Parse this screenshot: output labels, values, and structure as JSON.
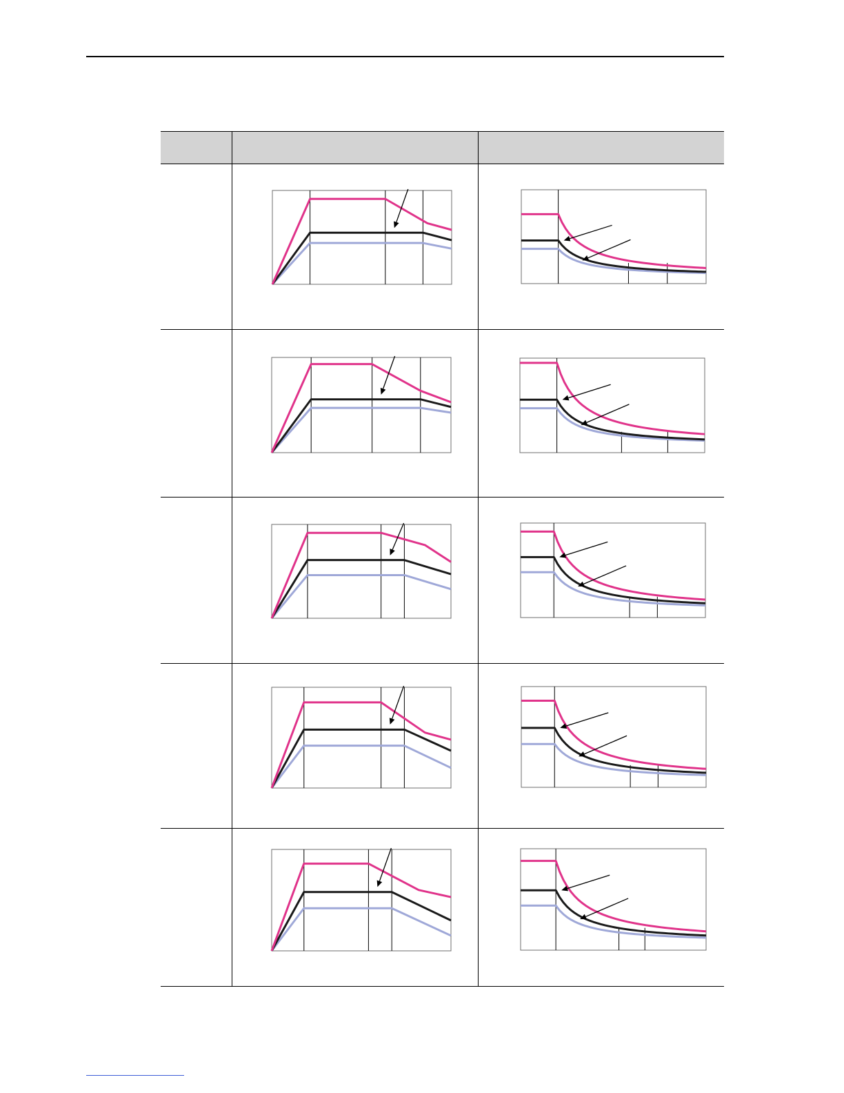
{
  "table": {
    "header": [
      "",
      "",
      ""
    ],
    "rows": [
      {
        "left_chart": {
          "break1": 0.21,
          "break2": 0.63,
          "break3": 0.84,
          "pink": [
            0.0,
            0.91,
            0.91,
            0.91,
            0.65,
            0.58
          ],
          "black": [
            0.0,
            0.55,
            0.55,
            0.55,
            0.55,
            0.47
          ],
          "blue": [
            0.0,
            0.44,
            0.44,
            0.44,
            0.44,
            0.38
          ]
        },
        "right_chart": {
          "break1": 0.2,
          "break2": 0.58,
          "break3": 0.79,
          "pink_start": 0.74,
          "black_start": 0.46,
          "blue_start": 0.37
        }
      },
      {
        "left_chart": {
          "break1": 0.22,
          "break2": 0.56,
          "break3": 0.83,
          "pink": [
            0.0,
            0.93,
            0.93,
            0.93,
            0.65,
            0.53
          ],
          "black": [
            0.0,
            0.56,
            0.56,
            0.56,
            0.56,
            0.48
          ],
          "blue": [
            0.0,
            0.47,
            0.47,
            0.47,
            0.47,
            0.42
          ]
        },
        "right_chart": {
          "break1": 0.2,
          "break2": 0.55,
          "break3": 0.8,
          "pink_start": 0.95,
          "black_start": 0.56,
          "blue_start": 0.47
        }
      },
      {
        "left_chart": {
          "break1": 0.2,
          "break2": 0.61,
          "break3": 0.74,
          "pink": [
            0.0,
            0.91,
            0.91,
            0.91,
            0.78,
            0.6
          ],
          "black": [
            0.0,
            0.62,
            0.62,
            0.62,
            0.62,
            0.47
          ],
          "blue": [
            0.0,
            0.46,
            0.46,
            0.46,
            0.46,
            0.31
          ]
        },
        "right_chart": {
          "break1": 0.18,
          "break2": 0.59,
          "break3": 0.74,
          "pink_start": 0.91,
          "black_start": 0.64,
          "blue_start": 0.48
        }
      },
      {
        "left_chart": {
          "break1": 0.18,
          "break2": 0.61,
          "break3": 0.74,
          "pink": [
            0.0,
            0.85,
            0.85,
            0.85,
            0.55,
            0.48
          ],
          "black": [
            0.0,
            0.58,
            0.58,
            0.58,
            0.58,
            0.37
          ],
          "blue": [
            0.0,
            0.42,
            0.42,
            0.42,
            0.42,
            0.2
          ]
        },
        "right_chart": {
          "break1": 0.18,
          "break2": 0.59,
          "break3": 0.74,
          "pink_start": 0.86,
          "black_start": 0.59,
          "blue_start": 0.43
        }
      },
      {
        "left_chart": {
          "break1": 0.18,
          "break2": 0.54,
          "break3": 0.67,
          "pink": [
            0.0,
            0.86,
            0.86,
            0.86,
            0.6,
            0.53
          ],
          "black": [
            0.0,
            0.58,
            0.58,
            0.58,
            0.58,
            0.3
          ],
          "blue": [
            0.0,
            0.42,
            0.42,
            0.42,
            0.42,
            0.15
          ]
        },
        "right_chart": {
          "break1": 0.19,
          "break2": 0.53,
          "break3": 0.67,
          "pink_start": 0.88,
          "black_start": 0.59,
          "blue_start": 0.44
        }
      }
    ]
  },
  "colors": {
    "pink": "#e0338a",
    "black": "#1a1a1a",
    "blue": "#9fa8d8",
    "frame": "#6d6d6d"
  }
}
